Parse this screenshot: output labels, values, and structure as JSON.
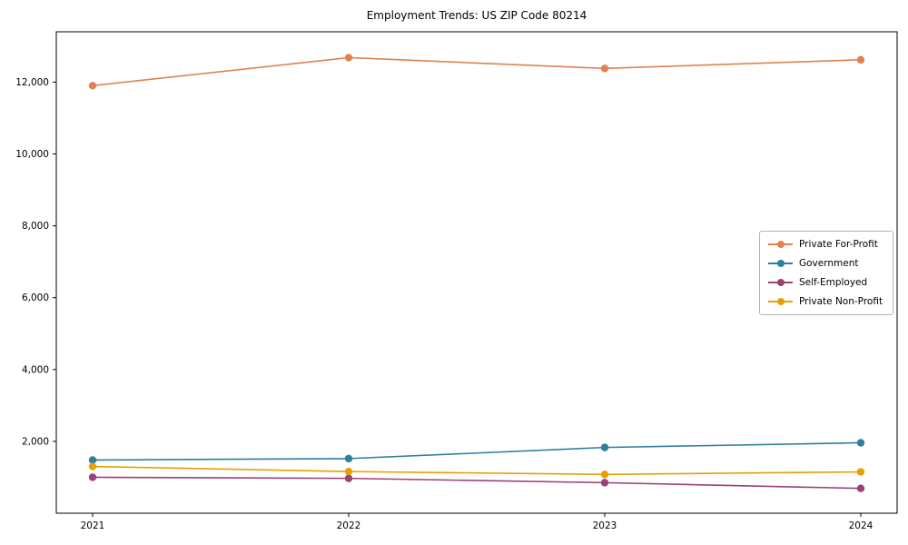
{
  "chart_data": {
    "type": "line",
    "title": "Employment Trends: US ZIP Code 80214",
    "x": [
      "2021",
      "2022",
      "2023",
      "2024"
    ],
    "series": [
      {
        "name": "Private For-Profit",
        "color": "#e0824f",
        "values": [
          11900,
          12680,
          12380,
          12620
        ]
      },
      {
        "name": "Government",
        "color": "#2e7f9e",
        "values": [
          1480,
          1520,
          1830,
          1960
        ]
      },
      {
        "name": "Self-Employed",
        "color": "#9c4078",
        "values": [
          1000,
          970,
          850,
          690
        ]
      },
      {
        "name": "Private Non-Profit",
        "color": "#e5a003",
        "values": [
          1300,
          1160,
          1080,
          1150
        ]
      }
    ],
    "ylim": [
      0,
      13400
    ],
    "yticks": [
      2000,
      4000,
      6000,
      8000,
      10000,
      12000
    ],
    "ytick_labels": [
      "2,000",
      "4,000",
      "6,000",
      "8,000",
      "10,000",
      "12,000"
    ],
    "xlabel": "",
    "ylabel": "",
    "grid": false,
    "legend_position": "center right"
  }
}
